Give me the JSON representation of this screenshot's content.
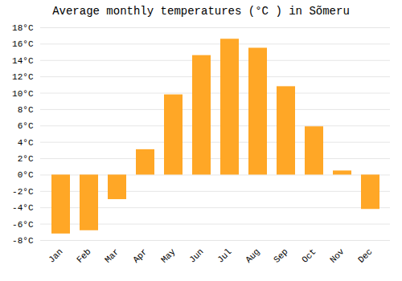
{
  "chart_data": {
    "type": "bar",
    "title": "Average monthly temperatures (°C ) in Sõmeru",
    "categories": [
      "Jan",
      "Feb",
      "Mar",
      "Apr",
      "May",
      "Jun",
      "Jul",
      "Aug",
      "Sep",
      "Oct",
      "Nov",
      "Dec"
    ],
    "values": [
      -7.2,
      -6.8,
      -3.0,
      3.1,
      9.8,
      14.6,
      16.6,
      15.5,
      10.8,
      5.9,
      0.5,
      -4.2
    ],
    "color": "#FFA726",
    "ylim": [
      -8,
      18
    ],
    "yticks": [
      {
        "value": -8,
        "label": "-8°C"
      },
      {
        "value": -6,
        "label": "-6°C"
      },
      {
        "value": -4,
        "label": "-4°C"
      },
      {
        "value": -2,
        "label": "-2°C"
      },
      {
        "value": 0,
        "label": "0°C"
      },
      {
        "value": 2,
        "label": "2°C"
      },
      {
        "value": 4,
        "label": "4°C"
      },
      {
        "value": 6,
        "label": "6°C"
      },
      {
        "value": 8,
        "label": "8°C"
      },
      {
        "value": 10,
        "label": "10°C"
      },
      {
        "value": 12,
        "label": "12°C"
      },
      {
        "value": 14,
        "label": "14°C"
      },
      {
        "value": 16,
        "label": "16°C"
      },
      {
        "value": 18,
        "label": "18°C"
      }
    ],
    "grid": true
  }
}
